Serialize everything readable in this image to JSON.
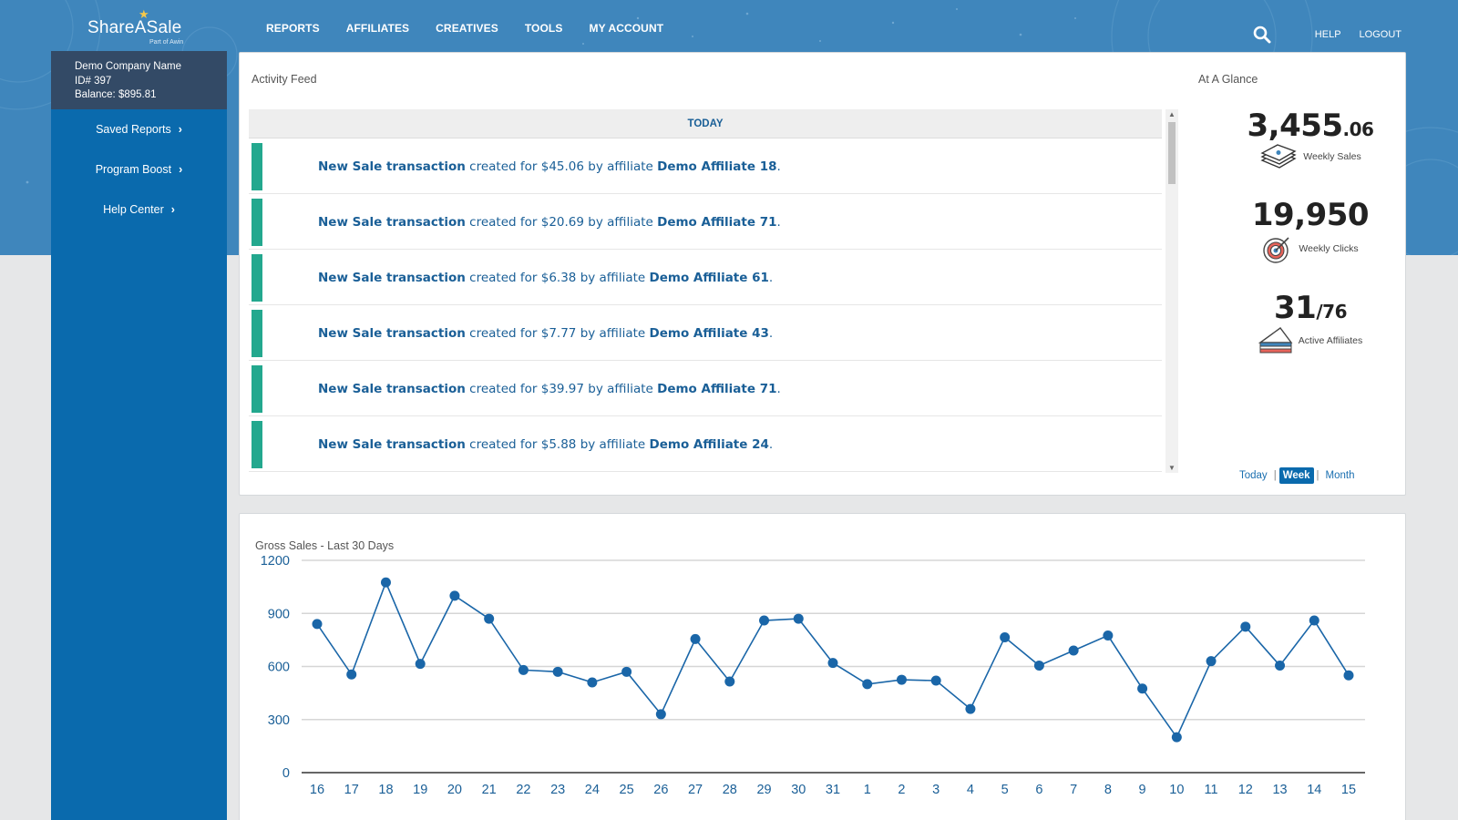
{
  "colors": {
    "brand_blue": "#3f86bc",
    "sidebar_blue": "#0a6aad",
    "account_bg": "#334a66",
    "feed_bar": "#23a88e",
    "link_blue": "#1a5f97",
    "line": "#1a66a8"
  },
  "brand": {
    "name": "ShareASale",
    "tagline": "Part of Awin"
  },
  "nav": {
    "items": [
      "REPORTS",
      "AFFILIATES",
      "CREATIVES",
      "TOOLS",
      "MY ACCOUNT"
    ]
  },
  "utility": {
    "help": "HELP",
    "logout": "LOGOUT",
    "search_icon": "search-icon"
  },
  "account": {
    "company": "Demo Company Name",
    "id": "ID# 397",
    "balance": "Balance: $895.81"
  },
  "sidebar": {
    "links": [
      "Saved Reports",
      "Program Boost",
      "Help Center"
    ]
  },
  "feed": {
    "title": "Activity Feed",
    "header": "TODAY",
    "items": [
      {
        "action": "New Sale transaction",
        "middle": " created for $45.06 by affiliate ",
        "affiliate": "Demo Affiliate 18",
        "end": "."
      },
      {
        "action": "New Sale transaction",
        "middle": " created for $20.69 by affiliate ",
        "affiliate": "Demo Affiliate 71",
        "end": "."
      },
      {
        "action": "New Sale transaction",
        "middle": " created for $6.38 by affiliate ",
        "affiliate": "Demo Affiliate 61",
        "end": "."
      },
      {
        "action": "New Sale transaction",
        "middle": " created for $7.77 by affiliate ",
        "affiliate": "Demo Affiliate 43",
        "end": "."
      },
      {
        "action": "New Sale transaction",
        "middle": " created for $39.97 by affiliate ",
        "affiliate": "Demo Affiliate 71",
        "end": "."
      },
      {
        "action": "New Sale transaction",
        "middle": " created for $5.88 by affiliate ",
        "affiliate": "Demo Affiliate 24",
        "end": "."
      }
    ]
  },
  "glance": {
    "title": "At A Glance",
    "sales": {
      "whole": "3,455",
      "cents": ".06",
      "label": "Weekly Sales",
      "icon": "money-stack-icon"
    },
    "clicks": {
      "value": "19,950",
      "label": "Weekly Clicks",
      "icon": "target-icon"
    },
    "affiliates": {
      "active": "31",
      "total": "/76",
      "label": "Active Affiliates",
      "icon": "cake-slice-icon"
    },
    "periods": [
      "Today",
      "Week",
      "Month"
    ],
    "selected_period": "Week"
  },
  "chart_data": {
    "type": "line",
    "title": "Gross Sales - Last 30 Days",
    "categories": [
      "16",
      "17",
      "18",
      "19",
      "20",
      "21",
      "22",
      "23",
      "24",
      "25",
      "26",
      "27",
      "28",
      "29",
      "30",
      "31",
      "1",
      "2",
      "3",
      "4",
      "5",
      "6",
      "7",
      "8",
      "9",
      "10",
      "11",
      "12",
      "13",
      "14",
      "15"
    ],
    "values": [
      840,
      555,
      1075,
      615,
      1000,
      870,
      580,
      570,
      510,
      570,
      330,
      755,
      515,
      860,
      870,
      620,
      500,
      525,
      520,
      360,
      765,
      605,
      690,
      775,
      475,
      200,
      630,
      825,
      605,
      860,
      550
    ],
    "ylim": [
      0,
      1200
    ],
    "yticks": [
      0,
      300,
      600,
      900,
      1200
    ],
    "grid": true
  }
}
